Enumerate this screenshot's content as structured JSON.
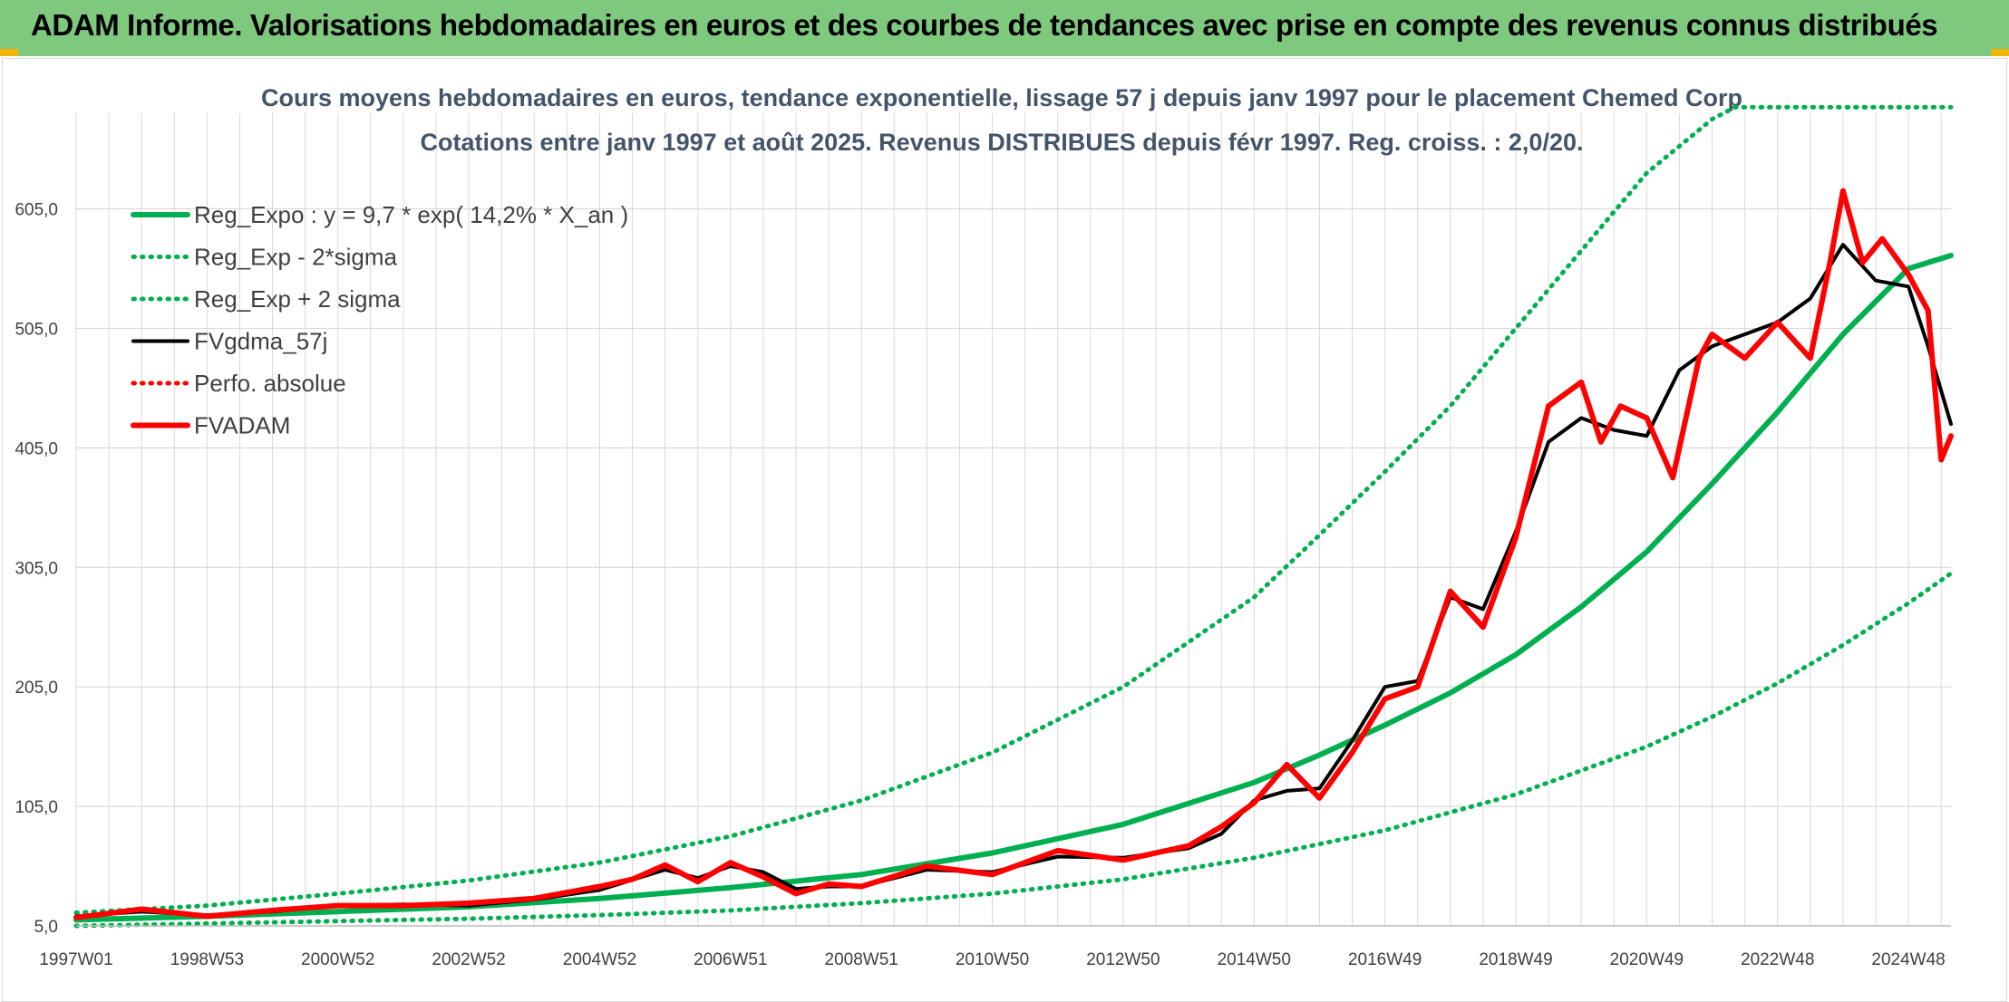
{
  "header": {
    "title": "ADAM Informe. Valorisations hebdomadaires en euros et des courbes de tendances avec prise en compte des revenus connus distribués"
  },
  "colors": {
    "banner": "#7fc97f",
    "trend": "#00b050",
    "fvgdma": "#000000",
    "fvadam": "#ff0000",
    "grid": "#d9d9d9"
  },
  "chart_data": {
    "type": "line",
    "title": "Cours moyens hebdomadaires en euros, tendance exponentielle, lissage 57 j depuis janv 1997 pour le placement Chemed Corp",
    "subtitle": "Cotations entre janv 1997 et août 2025. Revenus DISTRIBUES depuis févr 1997. Reg. croiss. : 2,0/20.",
    "xlabel": "",
    "ylabel": "",
    "x_ticks": [
      "1997W01",
      "1998W53",
      "2000W52",
      "2002W52",
      "2004W52",
      "2006W51",
      "2008W51",
      "2010W50",
      "2012W50",
      "2014W50",
      "2016W49",
      "2018W49",
      "2020W49",
      "2022W48",
      "2024W48"
    ],
    "x_range": [
      1997.0,
      2025.65
    ],
    "y_ticks": [
      "5,0",
      "105,0",
      "205,0",
      "305,0",
      "405,0",
      "505,0",
      "605,0"
    ],
    "ylim": [
      5,
      685
    ],
    "grid": true,
    "legend_position": "top-left",
    "legend": [
      {
        "label": "Reg_Expo : y = 9,7 * exp( 14,2% *  X_an )",
        "style": "solid-thick",
        "color": "#00b050"
      },
      {
        "label": "Reg_Exp - 2*sigma",
        "style": "dotted",
        "color": "#00b050"
      },
      {
        "label": "Reg_Exp + 2 sigma",
        "style": "dotted",
        "color": "#00b050"
      },
      {
        "label": "FVgdma_57j",
        "style": "solid",
        "color": "#000000"
      },
      {
        "label": "Perfo. absolue",
        "style": "dotted",
        "color": "#ff0000"
      },
      {
        "label": "FVADAM",
        "style": "solid-thick",
        "color": "#ff0000"
      }
    ],
    "series": [
      {
        "name": "Reg_Expo : y = 9,7 * exp( 14,2% *  X_an )",
        "x": [
          1997.0,
          1999.0,
          2001.0,
          2003.0,
          2005.0,
          2007.0,
          2009.0,
          2011.0,
          2013.0,
          2015.0,
          2016.0,
          2017.0,
          2018.0,
          2019.0,
          2020.0,
          2021.0,
          2022.0,
          2023.0,
          2024.0,
          2025.0,
          2025.65
        ],
        "y": [
          10,
          13,
          17,
          21,
          28,
          37,
          48,
          66,
          90,
          125,
          148,
          173,
          200,
          232,
          272,
          318,
          375,
          435,
          500,
          555,
          566
        ]
      },
      {
        "name": "Reg_Exp - 2*sigma",
        "x": [
          1997.0,
          1999.0,
          2001.0,
          2003.0,
          2005.0,
          2007.0,
          2009.0,
          2011.0,
          2013.0,
          2015.0,
          2017.0,
          2019.0,
          2021.0,
          2022.0,
          2023.0,
          2024.0,
          2025.0,
          2025.65
        ],
        "y": [
          5,
          7,
          9,
          11,
          14,
          18,
          24,
          32,
          44,
          62,
          85,
          115,
          155,
          180,
          208,
          240,
          275,
          300
        ]
      },
      {
        "name": "Reg_Exp + 2 sigma",
        "x": [
          1997.0,
          1999.0,
          2001.0,
          2003.0,
          2005.0,
          2007.0,
          2009.0,
          2011.0,
          2013.0,
          2015.0,
          2016.0,
          2017.0,
          2018.0,
          2019.0,
          2020.0,
          2021.0,
          2022.0,
          2022.35,
          2025.65
        ],
        "y": [
          16,
          22,
          32,
          43,
          58,
          80,
          110,
          150,
          205,
          280,
          332,
          385,
          440,
          505,
          570,
          635,
          680,
          690,
          690
        ]
      },
      {
        "name": "FVgdma_57j",
        "x": [
          1997.0,
          1998.0,
          1999.0,
          2000.0,
          2001.0,
          2002.0,
          2003.0,
          2004.0,
          2005.0,
          2006.0,
          2006.5,
          2007.0,
          2007.5,
          2008.0,
          2008.5,
          2009.0,
          2010.0,
          2011.0,
          2012.0,
          2013.0,
          2014.0,
          2014.5,
          2015.0,
          2015.5,
          2016.0,
          2016.5,
          2017.0,
          2017.5,
          2018.0,
          2018.5,
          2019.0,
          2019.5,
          2020.0,
          2020.5,
          2021.0,
          2021.5,
          2022.0,
          2022.5,
          2023.0,
          2023.5,
          2024.0,
          2024.5,
          2025.0,
          2025.3,
          2025.65
        ],
        "y": [
          13,
          17,
          14,
          17,
          22,
          23,
          22,
          27,
          35,
          52,
          45,
          55,
          50,
          36,
          38,
          38,
          52,
          50,
          63,
          62,
          70,
          82,
          110,
          118,
          120,
          160,
          205,
          210,
          280,
          270,
          335,
          410,
          430,
          420,
          415,
          470,
          490,
          500,
          510,
          530,
          575,
          545,
          540,
          490,
          425
        ]
      },
      {
        "name": "FVADAM",
        "x": [
          1997.0,
          1998.0,
          1999.0,
          2000.0,
          2001.0,
          2002.0,
          2003.0,
          2004.0,
          2005.0,
          2005.5,
          2006.0,
          2006.5,
          2007.0,
          2007.5,
          2008.0,
          2008.5,
          2009.0,
          2010.0,
          2011.0,
          2012.0,
          2013.0,
          2014.0,
          2014.5,
          2015.0,
          2015.5,
          2016.0,
          2016.5,
          2017.0,
          2017.5,
          2018.0,
          2018.5,
          2019.0,
          2019.5,
          2020.0,
          2020.3,
          2020.6,
          2021.0,
          2021.4,
          2021.8,
          2022.0,
          2022.5,
          2023.0,
          2023.5,
          2023.8,
          2024.0,
          2024.3,
          2024.6,
          2025.0,
          2025.3,
          2025.5,
          2025.65
        ],
        "y": [
          12,
          19,
          13,
          18,
          22,
          22,
          24,
          28,
          38,
          44,
          56,
          42,
          58,
          46,
          32,
          40,
          38,
          55,
          48,
          68,
          60,
          72,
          88,
          108,
          140,
          112,
          150,
          195,
          205,
          285,
          255,
          330,
          440,
          460,
          410,
          440,
          430,
          380,
          480,
          500,
          480,
          510,
          480,
          560,
          620,
          560,
          580,
          550,
          520,
          395,
          415
        ]
      }
    ]
  }
}
